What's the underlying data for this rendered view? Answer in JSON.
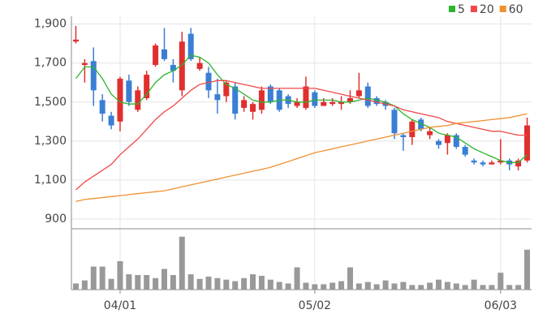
{
  "chart_data": {
    "type": "candlestick",
    "categories": [
      null,
      null,
      null,
      null,
      null,
      "04/01",
      null,
      null,
      null,
      null,
      null,
      null,
      null,
      null,
      null,
      null,
      null,
      null,
      null,
      null,
      null,
      null,
      null,
      null,
      null,
      null,
      null,
      "05/02",
      null,
      null,
      null,
      null,
      null,
      null,
      null,
      null,
      null,
      null,
      null,
      null,
      null,
      null,
      null,
      null,
      null,
      null,
      null,
      null,
      "06/03",
      null,
      null,
      null
    ],
    "open": [
      1810,
      1690,
      1710,
      1510,
      1430,
      1400,
      1610,
      1460,
      1520,
      1690,
      1770,
      1690,
      1560,
      1850,
      1670,
      1650,
      1540,
      1530,
      1580,
      1470,
      1450,
      1460,
      1580,
      1560,
      1530,
      1480,
      1470,
      1550,
      1480,
      1490,
      1490,
      1500,
      1530,
      1580,
      1520,
      1500,
      1460,
      1330,
      1320,
      1410,
      1330,
      1300,
      1290,
      1330,
      1270,
      1200,
      1190,
      1180,
      1190,
      1200,
      1170,
      1200
    ],
    "high": [
      1890,
      1720,
      1780,
      1540,
      1450,
      1630,
      1640,
      1580,
      1660,
      1800,
      1880,
      1720,
      1860,
      1880,
      1730,
      1680,
      1620,
      1610,
      1600,
      1530,
      1500,
      1580,
      1590,
      1570,
      1540,
      1520,
      1630,
      1560,
      1520,
      1520,
      1530,
      1560,
      1650,
      1600,
      1530,
      1510,
      1470,
      1340,
      1410,
      1420,
      1370,
      1310,
      1340,
      1340,
      1280,
      1210,
      1200,
      1200,
      1310,
      1210,
      1210,
      1420
    ],
    "low": [
      1800,
      1600,
      1480,
      1400,
      1360,
      1350,
      1480,
      1450,
      1510,
      1680,
      1710,
      1600,
      1530,
      1710,
      1660,
      1520,
      1440,
      1500,
      1410,
      1450,
      1410,
      1440,
      1490,
      1450,
      1470,
      1470,
      1460,
      1470,
      1480,
      1480,
      1460,
      1490,
      1520,
      1470,
      1480,
      1460,
      1310,
      1250,
      1280,
      1350,
      1310,
      1260,
      1230,
      1260,
      1220,
      1180,
      1170,
      1180,
      1180,
      1150,
      1150,
      1190
    ],
    "close": [
      1820,
      1700,
      1560,
      1440,
      1380,
      1620,
      1500,
      1560,
      1640,
      1790,
      1720,
      1660,
      1810,
      1720,
      1700,
      1560,
      1510,
      1600,
      1440,
      1510,
      1490,
      1560,
      1500,
      1460,
      1490,
      1500,
      1580,
      1480,
      1500,
      1500,
      1500,
      1520,
      1560,
      1480,
      1490,
      1480,
      1340,
      1320,
      1400,
      1360,
      1350,
      1280,
      1330,
      1270,
      1230,
      1190,
      1180,
      1190,
      1200,
      1180,
      1200,
      1380
    ],
    "up_color": "#e02f2f",
    "down_color": "#3a7fd5",
    "series": [
      {
        "name": "5",
        "color": "#2db52d",
        "values": [
          1620,
          1680,
          1680,
          1620,
          1540,
          1500,
          1490,
          1490,
          1540,
          1600,
          1640,
          1660,
          1690,
          1740,
          1730,
          1700,
          1640,
          1590,
          1570,
          1540,
          1510,
          1500,
          1500,
          1510,
          1510,
          1500,
          1500,
          1510,
          1510,
          1510,
          1500,
          1500,
          1510,
          1520,
          1510,
          1500,
          1480,
          1440,
          1410,
          1390,
          1370,
          1340,
          1330,
          1320,
          1290,
          1260,
          1240,
          1220,
          1200,
          1190,
          1190,
          1230
        ]
      },
      {
        "name": "20",
        "color": "#f04848",
        "values": [
          1050,
          1090,
          1120,
          1150,
          1180,
          1230,
          1270,
          1310,
          1360,
          1410,
          1450,
          1480,
          1520,
          1560,
          1590,
          1600,
          1610,
          1610,
          1600,
          1590,
          1580,
          1570,
          1570,
          1570,
          1570,
          1570,
          1570,
          1570,
          1560,
          1550,
          1540,
          1530,
          1520,
          1510,
          1500,
          1490,
          1480,
          1460,
          1450,
          1440,
          1430,
          1420,
          1400,
          1390,
          1380,
          1370,
          1360,
          1350,
          1350,
          1340,
          1330,
          1330
        ]
      },
      {
        "name": "60",
        "color": "#f09030",
        "values": [
          990,
          1000,
          1005,
          1010,
          1015,
          1020,
          1025,
          1030,
          1035,
          1040,
          1045,
          1055,
          1065,
          1075,
          1085,
          1095,
          1105,
          1115,
          1125,
          1135,
          1145,
          1155,
          1165,
          1180,
          1195,
          1210,
          1225,
          1240,
          1250,
          1260,
          1270,
          1280,
          1290,
          1300,
          1310,
          1320,
          1330,
          1340,
          1350,
          1360,
          1370,
          1375,
          1380,
          1390,
          1395,
          1400,
          1405,
          1410,
          1415,
          1420,
          1430,
          1440
        ]
      }
    ],
    "ylim": [
      850,
      1940
    ],
    "yticks": [
      900,
      {
        "value": 1100,
        "label": "1,100"
      },
      {
        "value": 1300,
        "label": "1,300"
      },
      {
        "value": 1500,
        "label": "1,500"
      },
      {
        "value": 1700,
        "label": "1,700"
      },
      {
        "value": 1900,
        "label": "1,900"
      }
    ],
    "grid": true,
    "legend": "top-right",
    "volume": {
      "color": "#999999",
      "ylim": [
        0,
        75
      ],
      "values": [
        8,
        12,
        30,
        30,
        14,
        37,
        20,
        19,
        19,
        15,
        27,
        19,
        69,
        20,
        14,
        17,
        15,
        13,
        11,
        15,
        20,
        18,
        13,
        10,
        8,
        29,
        9,
        7,
        7,
        9,
        11,
        29,
        8,
        10,
        7,
        12,
        8,
        10,
        6,
        6,
        9,
        13,
        10,
        8,
        6,
        13,
        6,
        6,
        22,
        6,
        6,
        52
      ]
    }
  }
}
